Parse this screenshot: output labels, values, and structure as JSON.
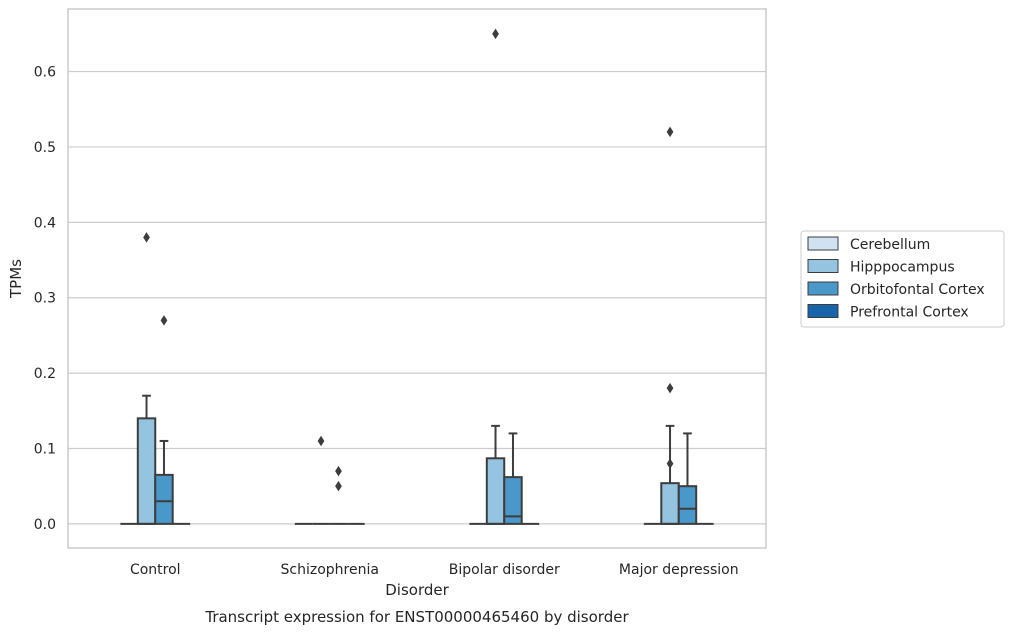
{
  "chart_data": {
    "type": "box",
    "title": "",
    "caption": "Transcript expression for ENST00000465460 by disorder",
    "xlabel": "Disorder",
    "ylabel": "TPMs",
    "categories": [
      "Control",
      "Schizophrenia",
      "Bipolar disorder",
      "Major depression"
    ],
    "ylim": [
      -0.032,
      0.683
    ],
    "yticks": [
      0.0,
      0.1,
      0.2,
      0.3,
      0.4,
      0.5,
      0.6
    ],
    "ytick_labels": [
      "0.0",
      "0.1",
      "0.2",
      "0.3",
      "0.4",
      "0.5",
      "0.6"
    ],
    "grid": "horizontal",
    "legend_position": "right",
    "series": [
      {
        "name": "Cerebellum",
        "color": "#d0e1f2",
        "boxes": [
          {
            "q1": 0,
            "median": 0,
            "q3": 0,
            "whislo": 0,
            "whishi": 0,
            "fliers": []
          },
          {
            "q1": 0,
            "median": 0,
            "q3": 0,
            "whislo": 0,
            "whishi": 0,
            "fliers": []
          },
          {
            "q1": 0,
            "median": 0,
            "q3": 0,
            "whislo": 0,
            "whishi": 0,
            "fliers": []
          },
          {
            "q1": 0,
            "median": 0,
            "q3": 0,
            "whislo": 0,
            "whishi": 0,
            "fliers": []
          }
        ]
      },
      {
        "name": "Hipppocampus",
        "color": "#94c4df",
        "boxes": [
          {
            "q1": 0,
            "median": 0,
            "q3": 0.14,
            "whislo": 0,
            "whishi": 0.17,
            "fliers": [
              0.38
            ]
          },
          {
            "q1": 0,
            "median": 0,
            "q3": 0,
            "whislo": 0,
            "whishi": 0,
            "fliers": [
              0.11
            ]
          },
          {
            "q1": 0,
            "median": 0,
            "q3": 0.087,
            "whislo": 0,
            "whishi": 0.13,
            "fliers": [
              0.65
            ]
          },
          {
            "q1": 0,
            "median": 0,
            "q3": 0.054,
            "whislo": 0,
            "whishi": 0.13,
            "fliers": [
              0.08,
              0.18,
              0.52
            ]
          }
        ]
      },
      {
        "name": "Orbitofontal Cortex",
        "color": "#4a98c9",
        "boxes": [
          {
            "q1": 0,
            "median": 0.03,
            "q3": 0.065,
            "whislo": 0,
            "whishi": 0.11,
            "fliers": [
              0.27
            ]
          },
          {
            "q1": 0,
            "median": 0,
            "q3": 0,
            "whislo": 0,
            "whishi": 0,
            "fliers": [
              0.05,
              0.07
            ]
          },
          {
            "q1": 0,
            "median": 0.01,
            "q3": 0.062,
            "whislo": 0,
            "whishi": 0.12,
            "fliers": []
          },
          {
            "q1": 0,
            "median": 0.02,
            "q3": 0.05,
            "whislo": 0,
            "whishi": 0.12,
            "fliers": []
          }
        ]
      },
      {
        "name": "Prefrontal Cortex",
        "color": "#1764ab",
        "boxes": [
          {
            "q1": 0,
            "median": 0,
            "q3": 0,
            "whislo": 0,
            "whishi": 0,
            "fliers": []
          },
          {
            "q1": 0,
            "median": 0,
            "q3": 0,
            "whislo": 0,
            "whishi": 0,
            "fliers": []
          },
          {
            "q1": 0,
            "median": 0,
            "q3": 0,
            "whislo": 0,
            "whishi": 0,
            "fliers": []
          },
          {
            "q1": 0,
            "median": 0,
            "q3": 0,
            "whislo": 0,
            "whishi": 0,
            "fliers": []
          }
        ]
      }
    ]
  },
  "colors": {
    "box_edge": "#3d3d3d",
    "grid": "#cccccc",
    "frame": "#cccccc",
    "text": "#262626"
  }
}
